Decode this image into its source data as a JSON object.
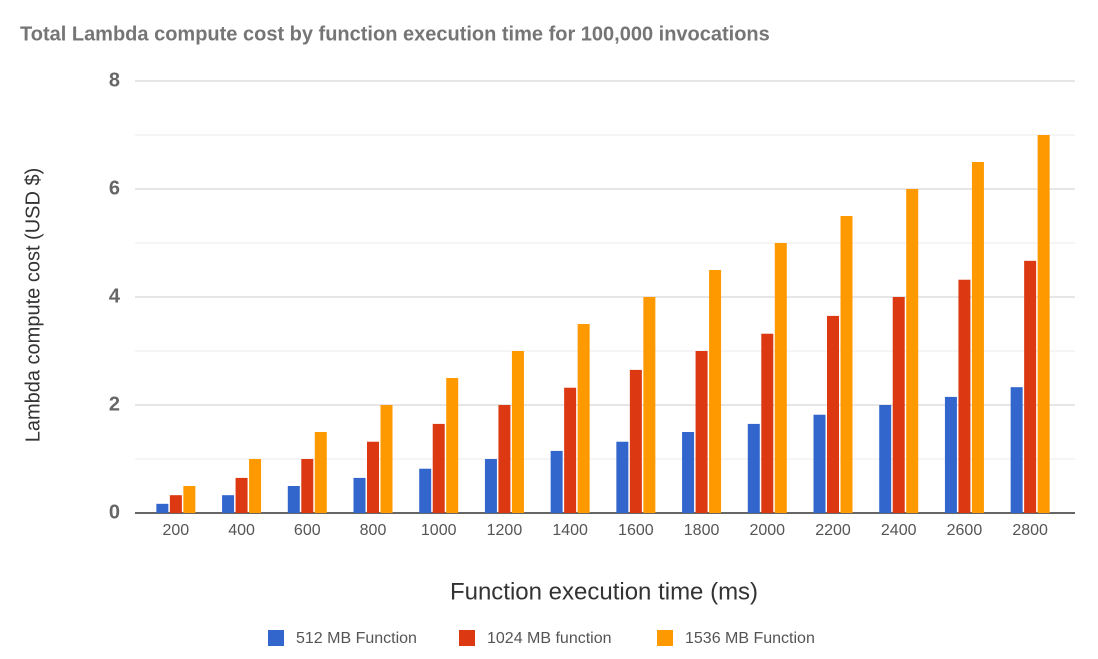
{
  "chart_data": {
    "type": "bar",
    "title": "Total Lambda compute cost by function execution time for 100,000 invocations",
    "x_label": "Function execution time (ms)",
    "y_label": "Lambda compute cost (USD $)",
    "categories": [
      "200",
      "400",
      "600",
      "800",
      "1000",
      "1200",
      "1400",
      "1600",
      "1800",
      "2000",
      "2200",
      "2400",
      "2600",
      "2800"
    ],
    "series": [
      {
        "name": "512 MB Function",
        "color": "#3366cc",
        "values": [
          0.17,
          0.33,
          0.5,
          0.65,
          0.82,
          1.0,
          1.15,
          1.32,
          1.5,
          1.65,
          1.82,
          2.0,
          2.15,
          2.33
        ]
      },
      {
        "name": "1024 MB function",
        "color": "#dc3912",
        "values": [
          0.33,
          0.65,
          1.0,
          1.32,
          1.65,
          2.0,
          2.32,
          2.65,
          3.0,
          3.32,
          3.65,
          4.0,
          4.32,
          4.67
        ]
      },
      {
        "name": "1536 MB Function",
        "color": "#ff9900",
        "values": [
          0.5,
          1.0,
          1.5,
          2.0,
          2.5,
          3.0,
          3.5,
          4.0,
          4.5,
          5.0,
          5.5,
          6.0,
          6.5,
          7.0
        ]
      }
    ],
    "ylim": [
      0,
      8
    ],
    "yticks": [
      0,
      2,
      4,
      6,
      8
    ],
    "minor_yticks": [
      1,
      3,
      5,
      7
    ],
    "grid": true,
    "legend": "bottom"
  }
}
